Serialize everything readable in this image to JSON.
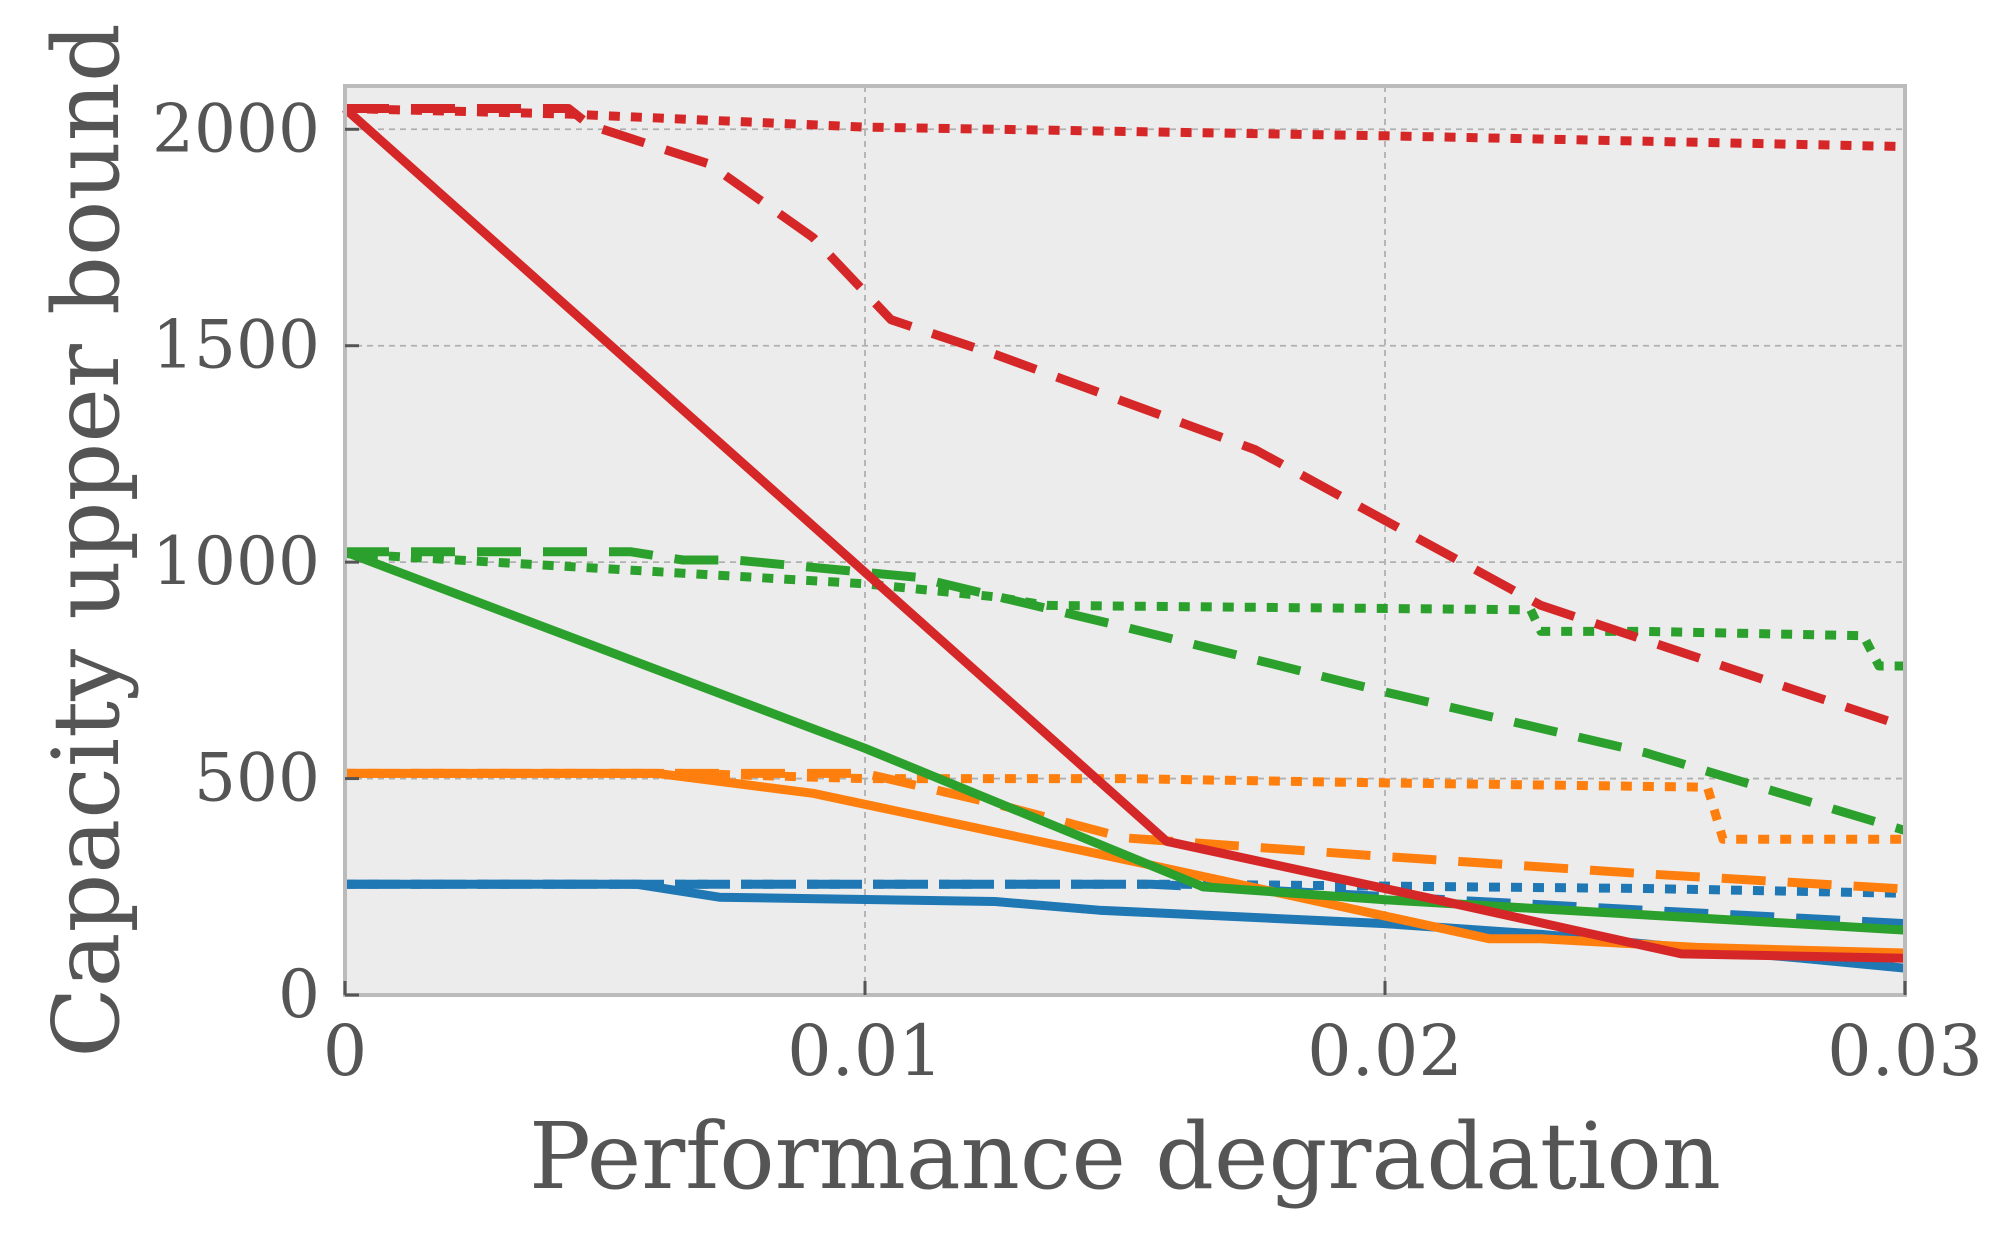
{
  "chart_data": {
    "type": "line",
    "title": "",
    "xlabel": "Performance degradation",
    "ylabel": "Capacity upper bound",
    "xlim": [
      0,
      0.03
    ],
    "ylim": [
      0,
      2100
    ],
    "xticks": [
      0,
      0.01,
      0.02,
      0.03
    ],
    "xtick_labels": [
      "0",
      "0.01",
      "0.02",
      "0.03"
    ],
    "yticks": [
      0,
      500,
      1000,
      1500,
      2000
    ],
    "ytick_labels": [
      "0",
      "500",
      "1000",
      "1500",
      "2000"
    ],
    "grid": true,
    "background": "#ececec",
    "series": [
      {
        "name": "blue-solid",
        "color": "#1f77b4",
        "style": "solid",
        "x": [
          0,
          0.0056,
          0.0072,
          0.0125,
          0.0145,
          0.02,
          0.023,
          0.028,
          0.03
        ],
        "y": [
          256,
          256,
          226,
          216,
          196,
          165,
          140,
          85,
          62
        ]
      },
      {
        "name": "blue-dashed",
        "color": "#1f77b4",
        "style": "dashed",
        "x": [
          0,
          0.0065,
          0.0075,
          0.0155,
          0.025,
          0.03
        ],
        "y": [
          256,
          256,
          256,
          256,
          196,
          165
        ]
      },
      {
        "name": "blue-dotted",
        "color": "#1f77b4",
        "style": "dotted",
        "x": [
          0,
          0.0065,
          0.016,
          0.025,
          0.03
        ],
        "y": [
          256,
          256,
          256,
          246,
          235
        ]
      },
      {
        "name": "orange-solid",
        "color": "#ff7f0e",
        "style": "solid",
        "x": [
          0,
          0.006,
          0.009,
          0.0155,
          0.022,
          0.023,
          0.026,
          0.03
        ],
        "y": [
          512,
          512,
          466,
          300,
          130,
          130,
          110,
          97
        ]
      },
      {
        "name": "orange-dashed",
        "color": "#ff7f0e",
        "style": "dashed",
        "x": [
          0,
          0.0065,
          0.01,
          0.0125,
          0.015,
          0.02,
          0.025,
          0.03
        ],
        "y": [
          512,
          512,
          512,
          442,
          363,
          320,
          280,
          245
        ]
      },
      {
        "name": "orange-dotted",
        "color": "#ff7f0e",
        "style": "dotted",
        "x": [
          0,
          0.0065,
          0.01,
          0.015,
          0.02,
          0.0262,
          0.0265,
          0.03
        ],
        "y": [
          512,
          512,
          500,
          500,
          490,
          480,
          360,
          360
        ]
      },
      {
        "name": "green-solid",
        "color": "#2ca02c",
        "style": "solid",
        "x": [
          0,
          0.01,
          0.0165,
          0.02,
          0.025,
          0.03
        ],
        "y": [
          1024,
          570,
          250,
          220,
          185,
          150
        ]
      },
      {
        "name": "green-dashed",
        "color": "#2ca02c",
        "style": "dashed",
        "x": [
          0,
          0.0055,
          0.0065,
          0.0075,
          0.011,
          0.015,
          0.02,
          0.025,
          0.03
        ],
        "y": [
          1024,
          1024,
          1005,
          1005,
          965,
          850,
          700,
          560,
          380
        ]
      },
      {
        "name": "green-dotted",
        "color": "#2ca02c",
        "style": "dotted",
        "x": [
          0,
          0.01,
          0.0125,
          0.0135,
          0.0228,
          0.023,
          0.025,
          0.0292,
          0.0295,
          0.03
        ],
        "y": [
          1020,
          950,
          920,
          900,
          890,
          840,
          840,
          830,
          760,
          760
        ]
      },
      {
        "name": "red-solid",
        "color": "#d62728",
        "style": "solid",
        "x": [
          0,
          0.0158,
          0.021,
          0.0257,
          0.03
        ],
        "y": [
          2048,
          355,
          220,
          95,
          85
        ]
      },
      {
        "name": "red-dashed",
        "color": "#d62728",
        "style": "dashed",
        "x": [
          0,
          0.0043,
          0.0047,
          0.007,
          0.009,
          0.0105,
          0.0125,
          0.0175,
          0.023,
          0.03
        ],
        "y": [
          2048,
          2048,
          2010,
          1920,
          1750,
          1560,
          1480,
          1260,
          900,
          620
        ]
      },
      {
        "name": "red-dotted",
        "color": "#d62728",
        "style": "dotted",
        "x": [
          0,
          0.0043,
          0.01,
          0.02,
          0.03
        ],
        "y": [
          2048,
          2035,
          2005,
          1985,
          1960
        ]
      }
    ]
  }
}
